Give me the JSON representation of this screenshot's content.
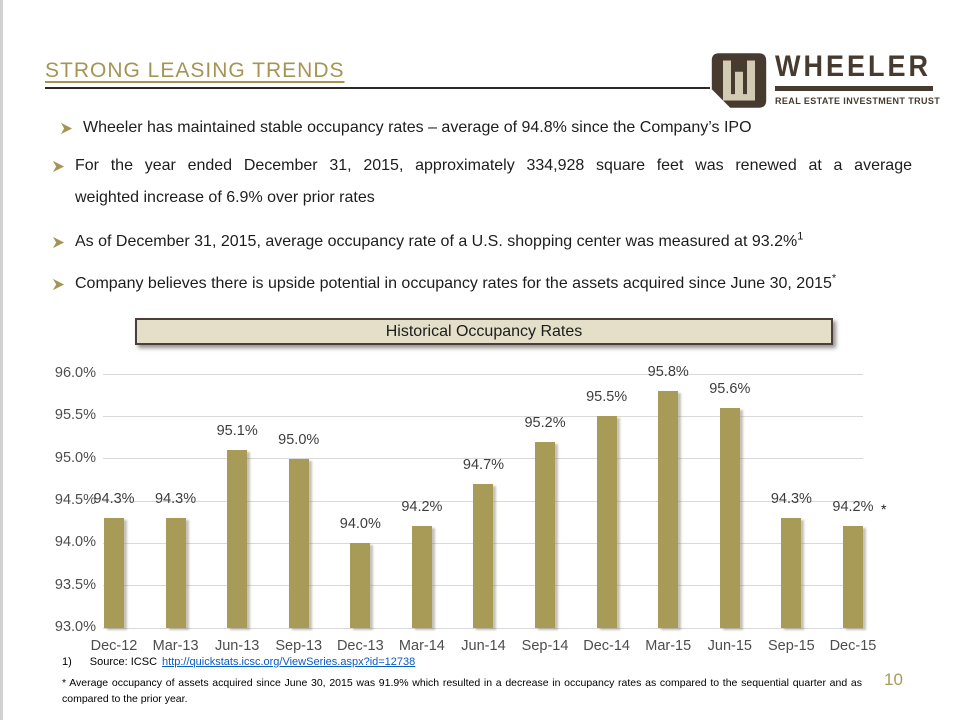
{
  "header": {
    "title": "STRONG LEASING TRENDS",
    "page_number": "10"
  },
  "logo": {
    "name": "WHEELER",
    "tagline": "REAL ESTATE INVESTMENT TRUST"
  },
  "bullets": [
    {
      "lines": [
        "Wheeler has maintained stable occupancy rates – average of 94.8% since the Company’s IPO"
      ],
      "sup": ""
    },
    {
      "lines": [
        "For the year ended December 31, 2015, approximately 334,928 square feet was renewed at a average",
        "weighted increase of 6.9% over prior rates"
      ],
      "sup": ""
    },
    {
      "lines": [
        "As of December 31, 2015, average occupancy rate of a U.S. shopping center was measured at 93.2%"
      ],
      "sup": "1"
    },
    {
      "lines": [
        "Company believes there is upside potential in occupancy rates for the assets acquired since June 30, 2015"
      ],
      "sup": "*"
    }
  ],
  "chart_data": {
    "type": "bar",
    "title": "Historical Occupancy Rates",
    "categories": [
      "Dec-12",
      "Mar-13",
      "Jun-13",
      "Sep-13",
      "Dec-13",
      "Mar-14",
      "Jun-14",
      "Sep-14",
      "Dec-14",
      "Mar-15",
      "Jun-15",
      "Sep-15",
      "Dec-15"
    ],
    "values": [
      94.3,
      94.3,
      95.1,
      95.0,
      94.0,
      94.2,
      94.7,
      95.2,
      95.5,
      95.8,
      95.6,
      94.3,
      94.2
    ],
    "labels": [
      "94.3%",
      "94.3%",
      "95.1%",
      "95.0%",
      "94.0%",
      "94.2%",
      "94.7%",
      "95.2%",
      "95.5%",
      "95.8%",
      "95.6%",
      "94.3%",
      "94.2%"
    ],
    "ylim": [
      93.0,
      96.0
    ],
    "ytick_labels": [
      "93.0%",
      "93.5%",
      "94.0%",
      "94.5%",
      "95.0%",
      "95.5%",
      "96.0%"
    ],
    "xlabel": "",
    "ylabel": "",
    "grid": true,
    "legend": false,
    "bar_color": "#a89a57",
    "annotations": [
      {
        "index": 12,
        "text": "*"
      }
    ]
  },
  "footer": {
    "source_ref": "1)",
    "source_label": "Source: ICSC",
    "source_link": "http://quickstats.icsc.org/ViewSeries.aspx?id=12738",
    "footnote": "* Average occupancy of assets acquired since June 30, 2015 was 91.9% which resulted in a decrease in occupancy rates as compared to the sequential quarter and as compared to the prior year."
  },
  "colors": {
    "accent_gold": "#a49555",
    "bar_gold": "#a89a57",
    "logo_brown": "#473a2f",
    "logo_beige": "#d3cab3",
    "chart_box_bg": "#e3dfc8",
    "link_blue": "#0b5bc4",
    "grid_gray": "#d9d9d9"
  }
}
